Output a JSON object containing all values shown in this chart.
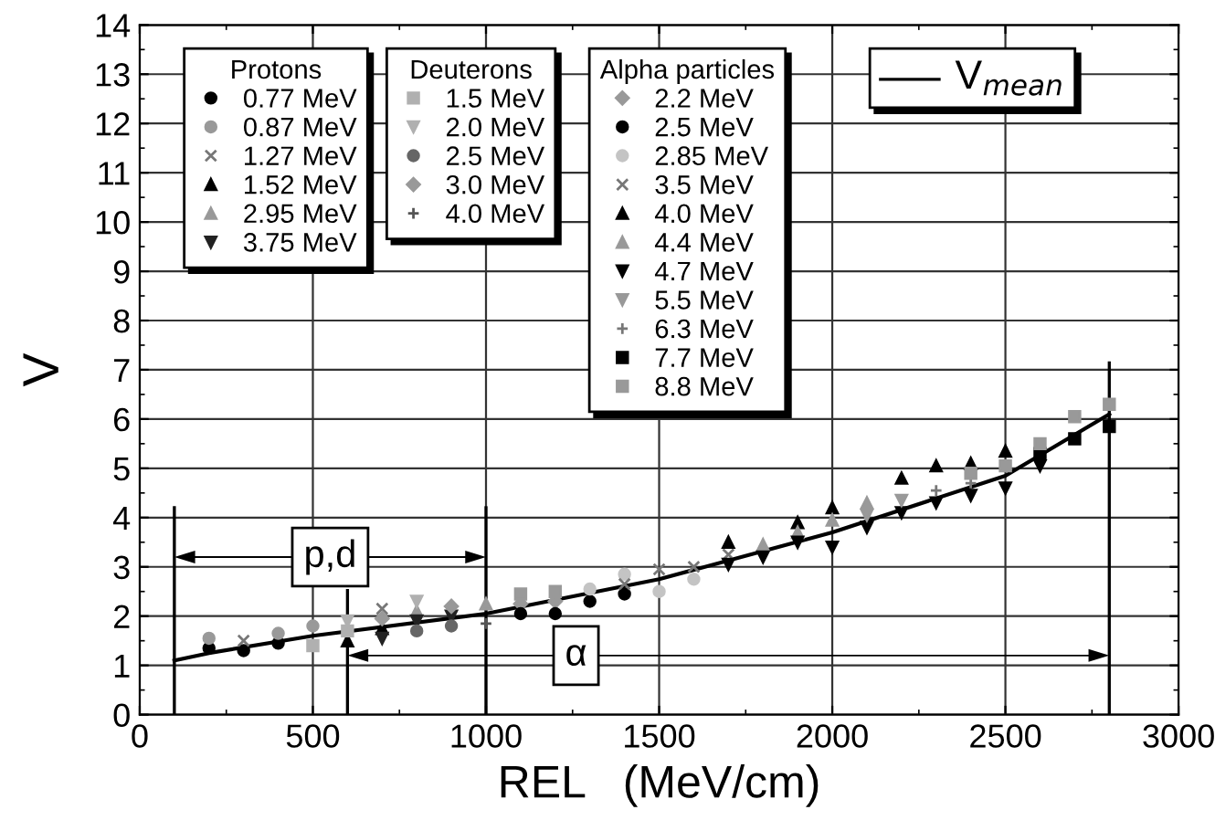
{
  "chart_data": [
    {
      "type": "line",
      "xlabel": "REL   (MeV/cm)",
      "ylabel": "V",
      "xlim": [
        0,
        3000
      ],
      "xticks": [
        0,
        500,
        1000,
        1500,
        2000,
        2500,
        3000
      ],
      "ylim": [
        0,
        14
      ],
      "yticks": [
        0,
        1,
        2,
        3,
        4,
        5,
        6,
        7,
        8,
        9,
        10,
        11,
        12,
        13,
        14
      ],
      "grid": true,
      "legend": "top right",
      "line_style": "solid",
      "ref_lines": [
        {
          "axis": "x",
          "value": 100
        },
        {
          "axis": "x",
          "value": 1000
        },
        {
          "axis": "x",
          "value": 600
        },
        {
          "axis": "x",
          "value": 2800
        }
      ],
      "annotations": [
        {
          "text": "p,d",
          "x": 550,
          "y": 3.2
        },
        {
          "text": "α",
          "x": 1260,
          "y": 1.2
        }
      ],
      "series": [
        {
          "name": "V$_{mean}$",
          "marker": "none",
          "color": "#000000",
          "x": [
            100,
            200,
            500,
            1000,
            1500,
            2000,
            2500,
            2800
          ],
          "values": [
            1.1,
            1.25,
            1.6,
            2.05,
            2.75,
            3.7,
            4.85,
            6.1
          ]
        }
      ]
    },
    {
      "type": "scatter",
      "legend_title": "Protons",
      "legend": "top left",
      "tick_labels": false,
      "xlim": [
        0,
        3000
      ],
      "ylim": [
        0,
        14
      ],
      "series": [
        {
          "name": "0.77 MeV",
          "marker": "circle",
          "color": "#000000",
          "x": [
            200,
            300,
            400
          ],
          "values": [
            1.35,
            1.3,
            1.45
          ]
        },
        {
          "name": "0.87 MeV",
          "marker": "circle",
          "color": "#999999",
          "x": [
            200,
            400,
            500
          ],
          "values": [
            1.55,
            1.65,
            1.8
          ]
        },
        {
          "name": "1.27 MeV",
          "marker": "x",
          "color": "#777777",
          "x": [
            300,
            700
          ],
          "values": [
            1.5,
            2.15
          ]
        },
        {
          "name": "1.52 MeV",
          "marker": "triangle",
          "color": "#000000",
          "x": [
            600,
            700
          ],
          "values": [
            1.5,
            1.75
          ]
        },
        {
          "name": "2.95 MeV",
          "marker": "triangle",
          "color": "#999999",
          "x": [
            800,
            1000
          ],
          "values": [
            2.1,
            2.25
          ]
        },
        {
          "name": "3.75 MeV",
          "marker": "triangle-down",
          "color": "#222222",
          "x": [
            700,
            800,
            900
          ],
          "values": [
            1.55,
            1.9,
            2.0
          ]
        }
      ]
    },
    {
      "type": "scatter",
      "legend_title": "Deuterons",
      "legend": "top",
      "tick_labels": false,
      "xlim": [
        0,
        3000
      ],
      "ylim": [
        0,
        14
      ],
      "series": [
        {
          "name": "1.5 MeV",
          "marker": "square",
          "color": "#b0b0b0",
          "x": [
            500,
            600
          ],
          "values": [
            1.4,
            1.7
          ]
        },
        {
          "name": "2.0 MeV",
          "marker": "triangle-down",
          "color": "#b0b0b0",
          "x": [
            600,
            800
          ],
          "values": [
            1.9,
            2.3
          ]
        },
        {
          "name": "2.5 MeV",
          "marker": "circle",
          "color": "#666666",
          "x": [
            800,
            900
          ],
          "values": [
            1.7,
            1.8
          ]
        },
        {
          "name": "3.0 MeV",
          "marker": "diamond",
          "color": "#999999",
          "x": [
            700,
            900
          ],
          "values": [
            1.95,
            2.2
          ]
        },
        {
          "name": "4.0 MeV",
          "marker": "cross",
          "color": "#555555",
          "x": [
            1000
          ],
          "values": [
            1.85
          ]
        }
      ]
    },
    {
      "type": "scatter",
      "legend_title": "Alpha particles",
      "legend": "top center",
      "tick_labels": false,
      "xlim": [
        0,
        3000
      ],
      "ylim": [
        0,
        14
      ],
      "series": [
        {
          "name": "2.2 MeV",
          "marker": "diamond",
          "color": "#999999",
          "x": [
            1100,
            1200
          ],
          "values": [
            2.25,
            2.3
          ]
        },
        {
          "name": "2.5 MeV",
          "marker": "circle",
          "color": "#000000",
          "x": [
            1100,
            1200,
            1300,
            1400
          ],
          "values": [
            2.05,
            2.05,
            2.3,
            2.45
          ]
        },
        {
          "name": "2.85 MeV",
          "marker": "circle",
          "color": "#c4c4c4",
          "x": [
            1300,
            1400,
            1500,
            1600
          ],
          "values": [
            2.55,
            2.85,
            2.5,
            2.75
          ]
        },
        {
          "name": "3.5 MeV",
          "marker": "x",
          "color": "#777777",
          "x": [
            1400,
            1500,
            1600,
            1700
          ],
          "values": [
            2.65,
            2.95,
            3.0,
            3.25
          ]
        },
        {
          "name": "4.0 MeV",
          "marker": "triangle",
          "color": "#000000",
          "x": [
            1700,
            1900,
            2000,
            2200,
            2300,
            2400,
            2500
          ],
          "values": [
            3.5,
            3.9,
            4.2,
            4.8,
            5.05,
            5.1,
            5.35
          ]
        },
        {
          "name": "4.4 MeV",
          "marker": "triangle",
          "color": "#999999",
          "x": [
            1800,
            1900,
            2000,
            2100
          ],
          "values": [
            3.45,
            3.7,
            3.95,
            4.3
          ]
        },
        {
          "name": "4.7 MeV",
          "marker": "triangle-down",
          "color": "#000000",
          "x": [
            1700,
            1800,
            1900,
            2000,
            2100,
            2200,
            2300,
            2400,
            2500,
            2600
          ],
          "values": [
            3.05,
            3.2,
            3.5,
            3.4,
            3.8,
            4.1,
            4.3,
            4.45,
            4.6,
            5.05
          ]
        },
        {
          "name": "5.5 MeV",
          "marker": "triangle-down",
          "color": "#999999",
          "x": [
            2100,
            2200
          ],
          "values": [
            4.05,
            4.35
          ]
        },
        {
          "name": "6.3 MeV",
          "marker": "cross",
          "color": "#777777",
          "x": [
            2300,
            2400
          ],
          "values": [
            4.55,
            4.7
          ]
        },
        {
          "name": "7.7 MeV",
          "marker": "square",
          "color": "#000000",
          "x": [
            2600,
            2700,
            2800
          ],
          "values": [
            5.3,
            5.6,
            5.85
          ]
        },
        {
          "name": "8.8 MeV",
          "marker": "square",
          "color": "#999999",
          "x": [
            1100,
            1200,
            2400,
            2500,
            2600,
            2700,
            2800
          ],
          "values": [
            2.45,
            2.5,
            4.9,
            5.05,
            5.5,
            6.05,
            6.3
          ]
        }
      ]
    }
  ]
}
